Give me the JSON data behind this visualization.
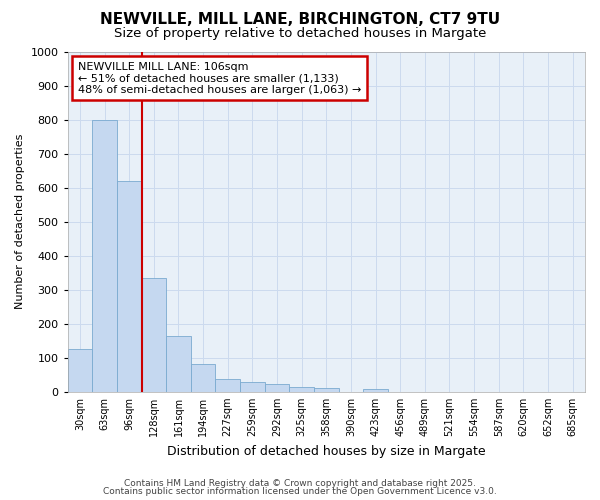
{
  "title": "NEWVILLE, MILL LANE, BIRCHINGTON, CT7 9TU",
  "subtitle": "Size of property relative to detached houses in Margate",
  "xlabel": "Distribution of detached houses by size in Margate",
  "ylabel": "Number of detached properties",
  "bar_labels": [
    "30sqm",
    "63sqm",
    "96sqm",
    "128sqm",
    "161sqm",
    "194sqm",
    "227sqm",
    "259sqm",
    "292sqm",
    "325sqm",
    "358sqm",
    "390sqm",
    "423sqm",
    "456sqm",
    "489sqm",
    "521sqm",
    "554sqm",
    "587sqm",
    "620sqm",
    "652sqm",
    "685sqm"
  ],
  "bar_values": [
    125,
    800,
    620,
    335,
    165,
    82,
    38,
    28,
    22,
    15,
    12,
    0,
    8,
    0,
    0,
    0,
    0,
    0,
    0,
    0,
    0
  ],
  "bar_color": "#c5d8f0",
  "bar_edge_color": "#7aaad0",
  "vline_color": "#cc0000",
  "vline_position": 2.5,
  "annotation_text": "NEWVILLE MILL LANE: 106sqm\n← 51% of detached houses are smaller (1,133)\n48% of semi-detached houses are larger (1,063) →",
  "annotation_box_color": "#cc0000",
  "ylim": [
    0,
    1000
  ],
  "yticks": [
    0,
    100,
    200,
    300,
    400,
    500,
    600,
    700,
    800,
    900,
    1000
  ],
  "grid_color": "#ccdaee",
  "background_color": "#e8f0f8",
  "fig_background": "#ffffff",
  "footer_line1": "Contains HM Land Registry data © Crown copyright and database right 2025.",
  "footer_line2": "Contains public sector information licensed under the Open Government Licence v3.0."
}
